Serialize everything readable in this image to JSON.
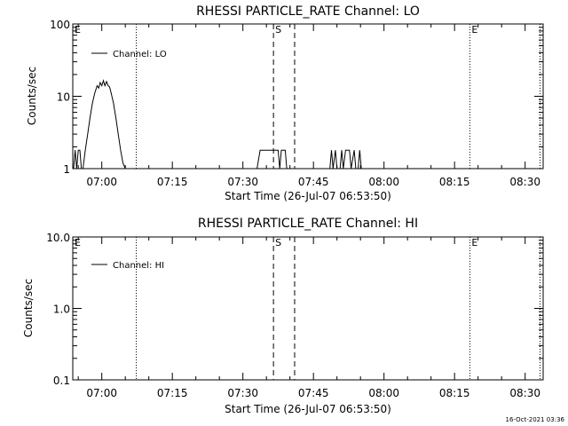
{
  "footer": {
    "timestamp": "16-Oct-2021 03:36"
  },
  "chart_data": [
    {
      "type": "line",
      "title": "RHESSI PARTICLE_RATE Channel: LO",
      "xlabel": "Start Time (26-Jul-07 06:53:50)",
      "ylabel": "Counts/sec",
      "y_scale": "log",
      "xlim": [
        "06:53:50",
        "08:33:50"
      ],
      "ylim": [
        1,
        100
      ],
      "x_ticks": [
        "07:00",
        "07:15",
        "07:30",
        "07:45",
        "08:00",
        "08:15",
        "08:30"
      ],
      "y_ticks": [
        "1",
        "10",
        "100"
      ],
      "legend": {
        "position": "top-left",
        "entries": [
          "Channel: LO"
        ]
      },
      "markers": [
        {
          "label": "E",
          "time": "06:53:50",
          "style": "dotted",
          "show_line": false
        },
        {
          "label": "",
          "time": "07:07:20",
          "style": "dotted",
          "show_line": true
        },
        {
          "label": "S",
          "time": "07:36:30",
          "style": "dashed",
          "show_line": true
        },
        {
          "label": "",
          "time": "07:41:00",
          "style": "dashed",
          "show_line": true
        },
        {
          "label": "E",
          "time": "08:18:15",
          "style": "dotted",
          "show_line": true
        },
        {
          "label": "",
          "time": "08:33:10",
          "style": "dotted",
          "show_line": true
        }
      ],
      "series": [
        {
          "color": "#000000",
          "segments": [
            [
              [
                "06:54:00",
                1
              ],
              [
                "06:54:20",
                1.8
              ],
              [
                "06:54:40",
                1
              ],
              [
                "06:55:00",
                1.8
              ],
              [
                "06:55:20",
                1.8
              ],
              [
                "06:55:40",
                1
              ]
            ],
            [
              [
                "06:56:00",
                1
              ],
              [
                "06:56:30",
                1.8
              ],
              [
                "06:57:00",
                3
              ],
              [
                "06:57:30",
                5
              ],
              [
                "06:58:00",
                8
              ],
              [
                "06:58:30",
                11
              ],
              [
                "06:59:00",
                14
              ],
              [
                "06:59:20",
                13
              ],
              [
                "06:59:40",
                15.5
              ],
              [
                "07:00:00",
                14
              ],
              [
                "07:00:20",
                16.5
              ],
              [
                "07:00:40",
                14
              ],
              [
                "07:01:00",
                16
              ],
              [
                "07:01:20",
                14
              ],
              [
                "07:01:40",
                13.5
              ],
              [
                "07:02:00",
                11
              ],
              [
                "07:02:30",
                8
              ],
              [
                "07:03:00",
                5
              ],
              [
                "07:03:30",
                3
              ],
              [
                "07:04:00",
                1.8
              ],
              [
                "07:04:30",
                1.2
              ],
              [
                "07:05:00",
                1
              ]
            ],
            [
              [
                "07:33:00",
                1
              ],
              [
                "07:33:40",
                1.8
              ],
              [
                "07:37:30",
                1.8
              ],
              [
                "07:37:50",
                1
              ],
              [
                "07:38:10",
                1.8
              ],
              [
                "07:39:00",
                1.8
              ],
              [
                "07:39:20",
                1
              ]
            ],
            [
              [
                "07:48:30",
                1
              ],
              [
                "07:48:50",
                1.8
              ],
              [
                "07:49:10",
                1
              ],
              [
                "07:49:40",
                1.8
              ],
              [
                "07:50:00",
                1
              ],
              [
                "07:50:40",
                1
              ],
              [
                "07:51:00",
                1.8
              ],
              [
                "07:51:20",
                1
              ],
              [
                "07:51:50",
                1.8
              ],
              [
                "07:52:40",
                1.8
              ],
              [
                "07:53:00",
                1
              ],
              [
                "07:53:40",
                1.8
              ],
              [
                "07:54:00",
                1
              ],
              [
                "07:54:30",
                1
              ],
              [
                "07:54:50",
                1.8
              ],
              [
                "07:55:10",
                1
              ]
            ]
          ]
        }
      ]
    },
    {
      "type": "line",
      "title": "RHESSI PARTICLE_RATE Channel: HI",
      "xlabel": "Start Time (26-Jul-07 06:53:50)",
      "ylabel": "Counts/sec",
      "y_scale": "log",
      "xlim": [
        "06:53:50",
        "08:33:50"
      ],
      "ylim": [
        0.1,
        10
      ],
      "x_ticks": [
        "07:00",
        "07:15",
        "07:30",
        "07:45",
        "08:00",
        "08:15",
        "08:30"
      ],
      "y_ticks": [
        "0.1",
        "1.0",
        "10.0"
      ],
      "legend": {
        "position": "top-left",
        "entries": [
          "Channel: HI"
        ]
      },
      "markers": [
        {
          "label": "E",
          "time": "06:53:50",
          "style": "dotted",
          "show_line": false
        },
        {
          "label": "",
          "time": "07:07:20",
          "style": "dotted",
          "show_line": true
        },
        {
          "label": "S",
          "time": "07:36:30",
          "style": "dashed",
          "show_line": true
        },
        {
          "label": "",
          "time": "07:41:00",
          "style": "dashed",
          "show_line": true
        },
        {
          "label": "E",
          "time": "08:18:15",
          "style": "dotted",
          "show_line": true
        },
        {
          "label": "",
          "time": "08:33:10",
          "style": "dotted",
          "show_line": true
        }
      ],
      "series": [
        {
          "color": "#000000",
          "segments": []
        }
      ]
    }
  ]
}
